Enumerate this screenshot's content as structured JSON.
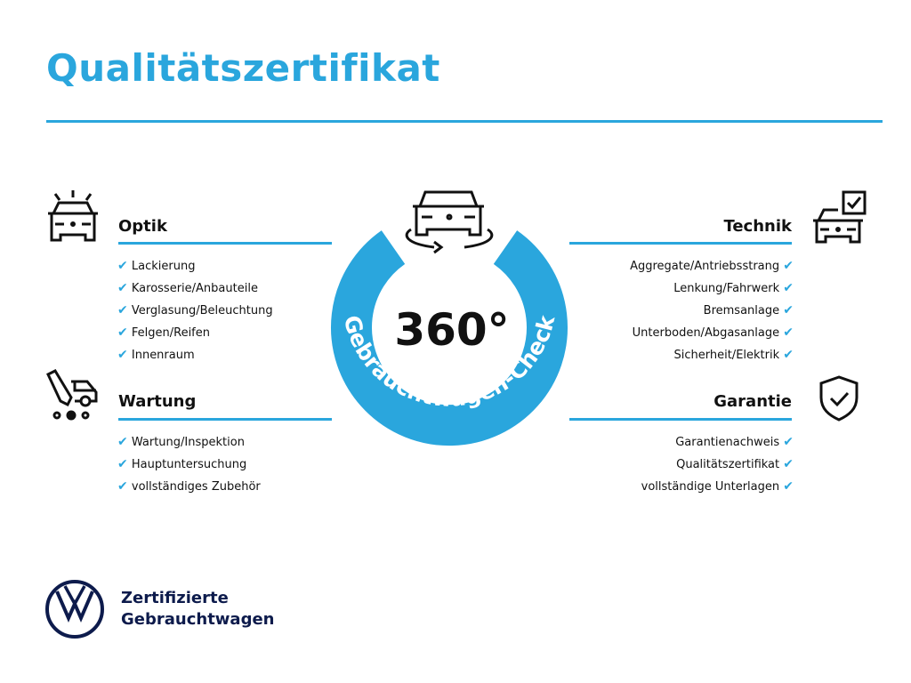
{
  "title": "Qualitätszertifikat",
  "accent_color": "#2aa6dd",
  "center": {
    "big": "360°",
    "ring_text": "Gebrauchtwagen-Check",
    "icon": "car-rotate-icon"
  },
  "sections": {
    "optik": {
      "title": "Optik",
      "icon": "car-lights-icon",
      "items": [
        "Lackierung",
        "Karosserie/Anbauteile",
        "Verglasung/Beleuchtung",
        "Felgen/Reifen",
        "Innenraum"
      ]
    },
    "wartung": {
      "title": "Wartung",
      "icon": "service-van-icon",
      "items": [
        "Wartung/Inspektion",
        "Hauptuntersuchung",
        "vollständiges Zubehör"
      ]
    },
    "technik": {
      "title": "Technik",
      "icon": "car-checkbox-icon",
      "items": [
        "Aggregate/Antriebsstrang",
        "Lenkung/Fahrwerk",
        "Bremsanlage",
        "Unterboden/Abgasanlage",
        "Sicherheit/Elektrik"
      ]
    },
    "garantie": {
      "title": "Garantie",
      "icon": "shield-check-icon",
      "items": [
        "Garantienachweis",
        "Qualitätszertifikat",
        "vollständige Unterlagen"
      ]
    }
  },
  "brand": {
    "line1": "Zertifizierte",
    "line2": "Gebrauchtwagen",
    "logo": "VW"
  }
}
